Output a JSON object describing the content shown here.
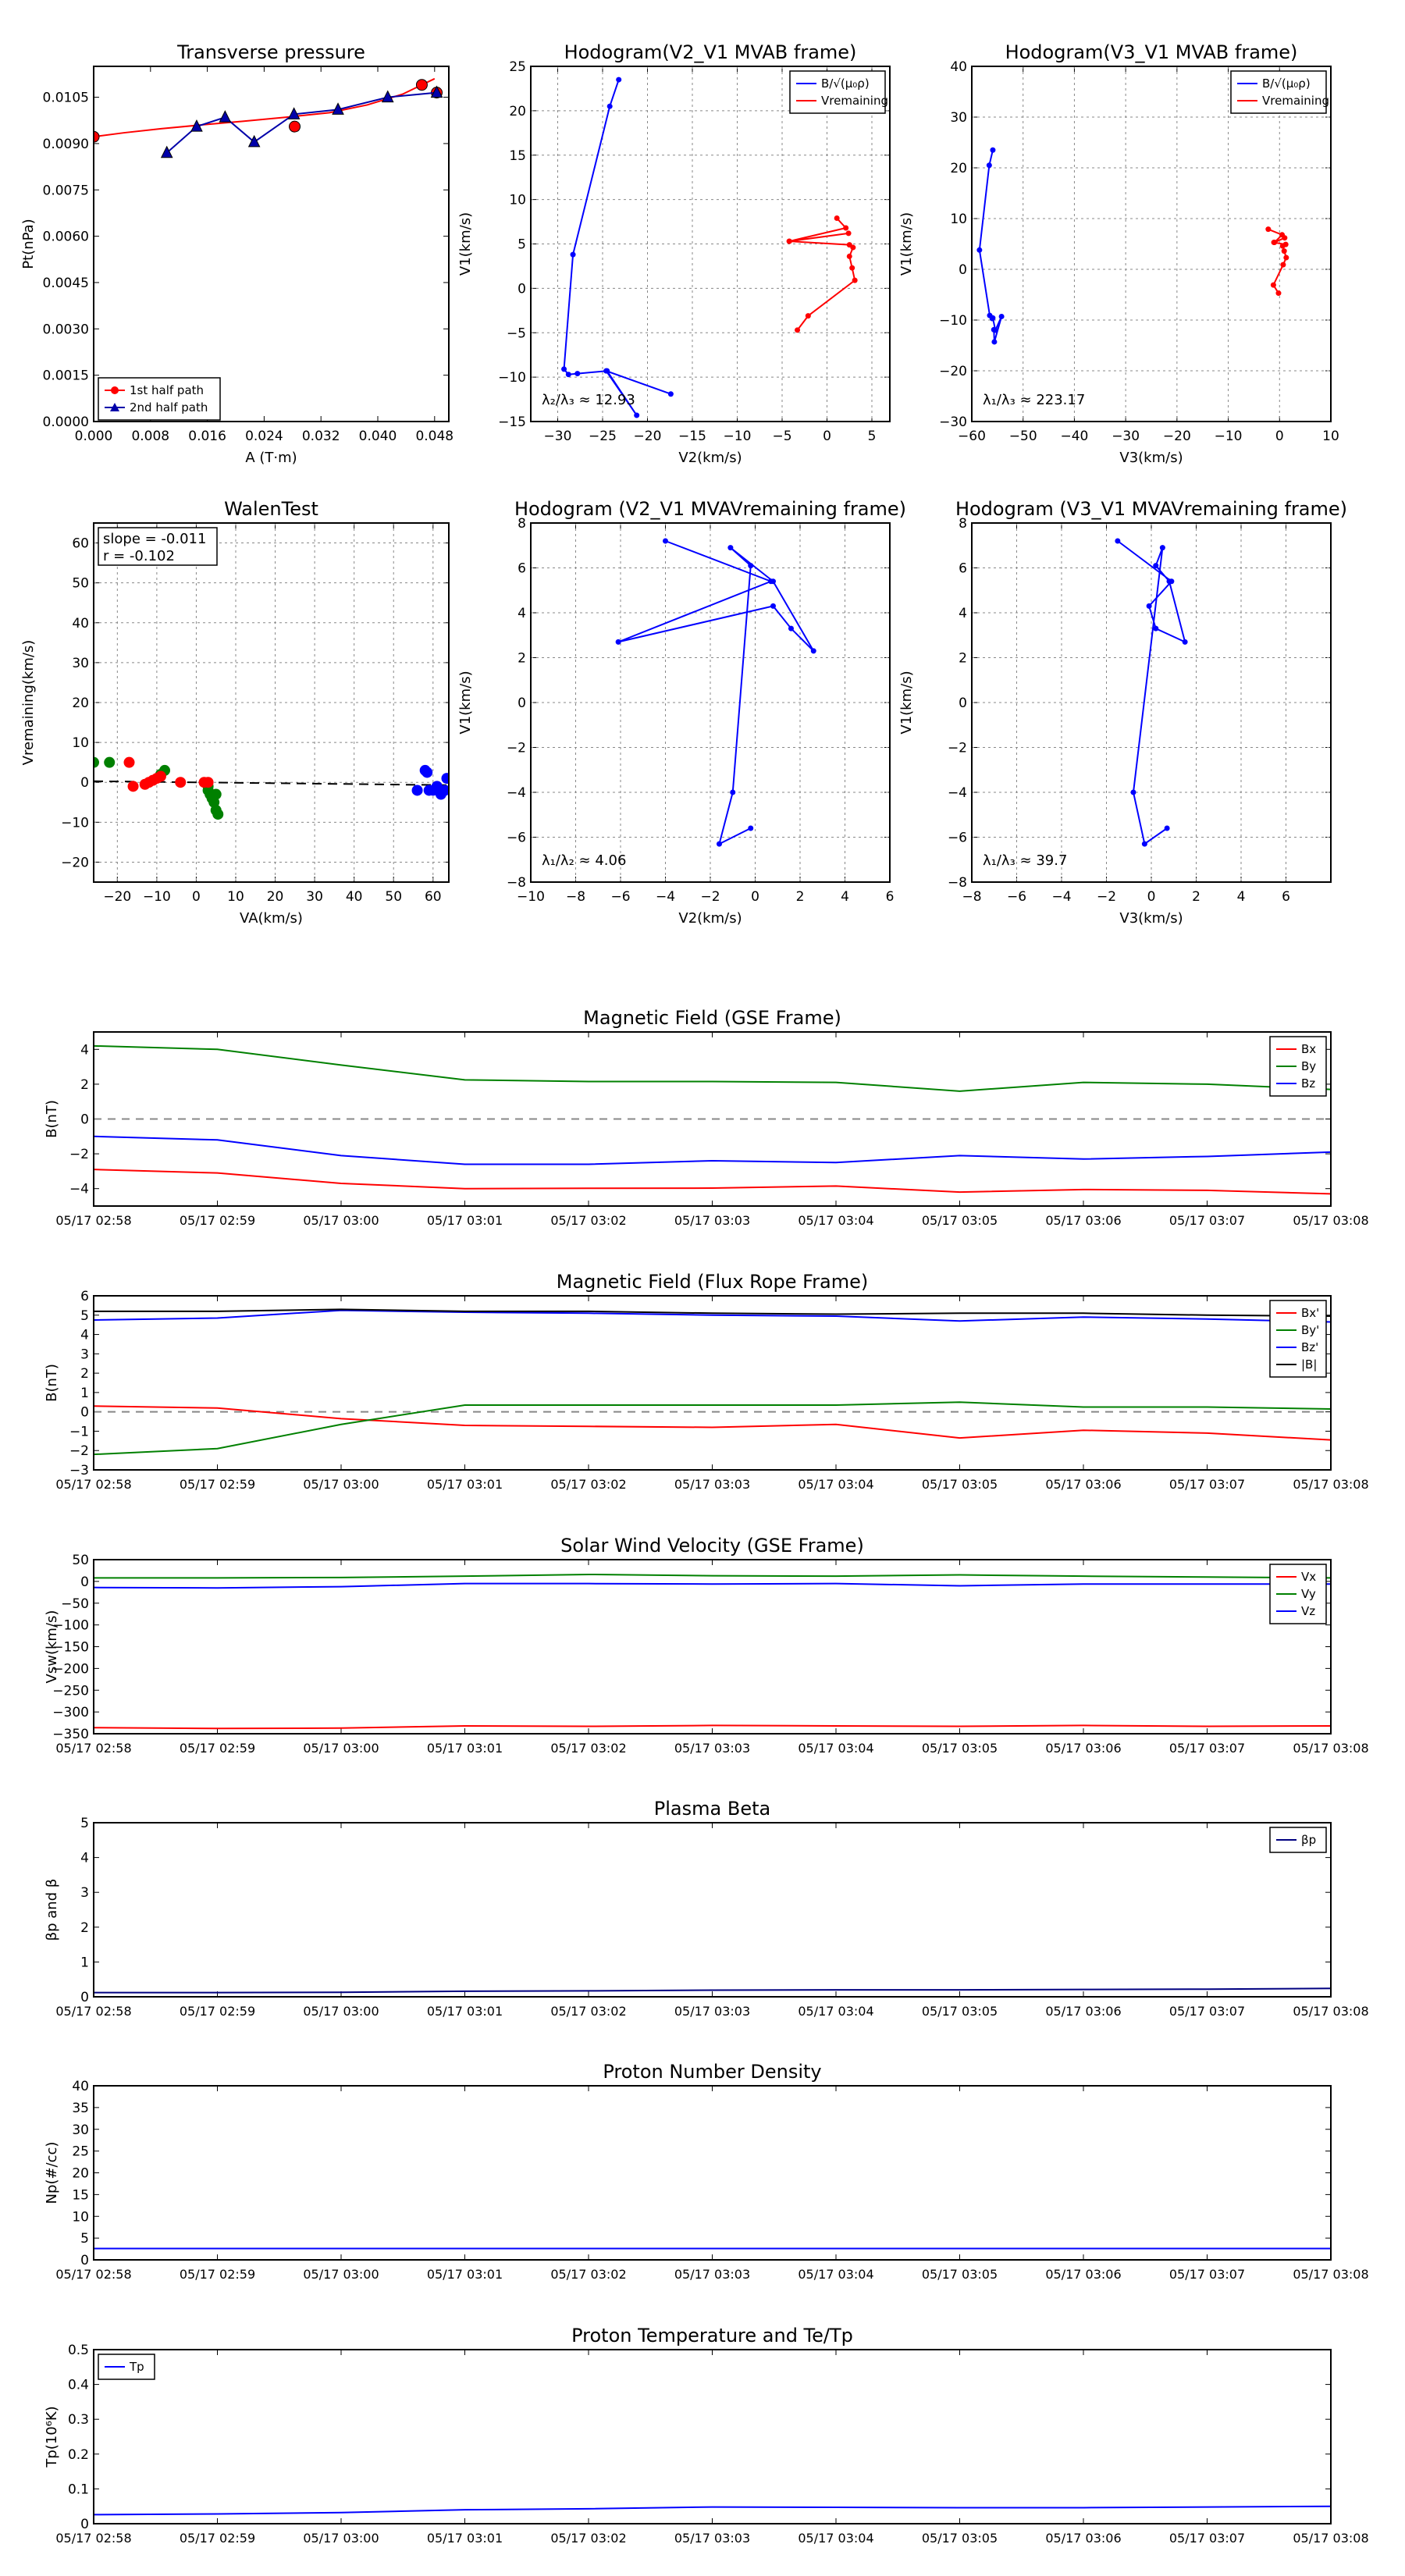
{
  "chart_data": [
    {
      "id": "tp",
      "type": "line",
      "title": "Transverse pressure",
      "xlabel": "A (T·m)",
      "ylabel": "Pt(nPa)",
      "xlim": [
        0,
        0.05
      ],
      "ylim": [
        0,
        0.0115
      ],
      "xticks": [
        0,
        0.008,
        0.016,
        0.024,
        0.032,
        0.04,
        0.048
      ],
      "xtick_labels": [
        "0.000",
        "0.008",
        "0.016",
        "0.024",
        "0.032",
        "0.040",
        "0.048"
      ],
      "yticks": [
        0,
        0.0015,
        0.003,
        0.0045,
        0.006,
        0.0075,
        0.009,
        0.0105
      ],
      "ytick_labels": [
        "0.0000",
        "0.0015",
        "0.0030",
        "0.0045",
        "0.0060",
        "0.0075",
        "0.0090",
        "0.0105"
      ],
      "legend": [
        "1st half path",
        "2nd half path"
      ],
      "fit": {
        "x": [
          0,
          0.0043,
          0.0095,
          0.015,
          0.021,
          0.027,
          0.0332,
          0.0385,
          0.0435,
          0.048
        ],
        "y": [
          0.00922,
          0.00935,
          0.00948,
          0.0096,
          0.00972,
          0.00985,
          0.01,
          0.01025,
          0.0106,
          0.0111
        ]
      },
      "series": [
        {
          "name": "1st half path",
          "color": "#ff0000",
          "marker": "circle",
          "x": [
            0,
            0.0283,
            0.0462,
            0.0483
          ],
          "y": [
            0.00922,
            0.00955,
            0.0109,
            0.01065
          ]
        },
        {
          "name": "2nd half path",
          "color": "#0000aa",
          "marker": "triangle",
          "x": [
            0.0103,
            0.0145,
            0.0185,
            0.0226,
            0.0282,
            0.0344,
            0.0414,
            0.0483
          ],
          "y": [
            0.0087,
            0.00955,
            0.00985,
            0.00905,
            0.00995,
            0.0101,
            0.0105,
            0.01065
          ]
        }
      ]
    },
    {
      "id": "h1",
      "type": "line",
      "title": "Hodogram(V2_V1 MVAB frame)",
      "xlabel": "V2(km/s)",
      "ylabel": "V1(km/s)",
      "xlim": [
        -33,
        7
      ],
      "ylim": [
        -15,
        25
      ],
      "xticks": [
        -30,
        -25,
        -20,
        -15,
        -10,
        -5,
        0,
        5
      ],
      "yticks": [
        -15,
        -10,
        -5,
        0,
        5,
        10,
        15,
        20,
        25
      ],
      "annotation": "λ₂/λ₃ ≈ 12.93",
      "legend": [
        "B/√(μ₀ρ)",
        "Vremaining"
      ],
      "series": [
        {
          "name": "B/√(μ₀ρ)",
          "color": "#0000ff",
          "x": [
            -23.2,
            -24.2,
            -28.3,
            -29.3,
            -28.8,
            -27.8,
            -24.5,
            -21.2,
            -24.6,
            -17.4
          ],
          "y": [
            23.5,
            20.5,
            3.8,
            -9.1,
            -9.7,
            -9.6,
            -9.3,
            -14.3,
            -9.3,
            -11.9
          ]
        },
        {
          "name": "Vremaining",
          "color": "#ff0000",
          "x": [
            1.1,
            2.1,
            -4.2,
            2.4,
            -4.2,
            2.5,
            2.9,
            2.5,
            2.8,
            3.1,
            -2.1,
            -3.3
          ],
          "y": [
            7.9,
            6.8,
            5.3,
            6.2,
            5.3,
            4.9,
            4.6,
            3.6,
            2.3,
            0.9,
            -3.1,
            -4.7
          ]
        }
      ]
    },
    {
      "id": "h2",
      "type": "line",
      "title": "Hodogram(V3_V1 MVAB frame)",
      "xlabel": "V3(km/s)",
      "ylabel": "V1(km/s)",
      "xlim": [
        -60,
        10
      ],
      "ylim": [
        -30,
        40
      ],
      "xticks": [
        -60,
        -50,
        -40,
        -30,
        -20,
        -10,
        0,
        10
      ],
      "yticks": [
        -30,
        -20,
        -10,
        0,
        10,
        20,
        30,
        40
      ],
      "annotation": "λ₁/λ₃ ≈ 223.17",
      "legend": [
        "B/√(μ₀ρ)",
        "Vremaining"
      ],
      "series": [
        {
          "name": "B/√(μ₀ρ)",
          "color": "#0000ff",
          "x": [
            -55.9,
            -56.6,
            -58.5,
            -56.5,
            -56,
            -55.9,
            -55.4,
            -54.2,
            -55.6,
            -55.7
          ],
          "y": [
            23.5,
            20.5,
            3.8,
            -9.1,
            -9.7,
            -9.6,
            -12,
            -9.3,
            -14.3,
            -11.9
          ]
        },
        {
          "name": "Vremaining",
          "color": "#ff0000",
          "x": [
            -2.2,
            0.5,
            -1,
            1,
            -1.1,
            1.2,
            0.6,
            0.9,
            1.3,
            0.7,
            -1.2,
            -0.2
          ],
          "y": [
            7.9,
            6.8,
            5.3,
            6.2,
            5.3,
            4.9,
            4.6,
            3.6,
            2.3,
            0.9,
            -3.1,
            -4.7
          ]
        }
      ]
    },
    {
      "id": "walen",
      "type": "scatter",
      "title": "WalenTest",
      "xlabel": "VA(km/s)",
      "ylabel": "Vremaining(km/s)",
      "xlim": [
        -26,
        64
      ],
      "ylim": [
        -25,
        65
      ],
      "xticks": [
        -20,
        -10,
        0,
        10,
        20,
        30,
        40,
        50,
        60
      ],
      "yticks": [
        -20,
        -10,
        0,
        10,
        20,
        30,
        40,
        50,
        60
      ],
      "annotation": [
        "slope = -0.011",
        "r = -0.102"
      ],
      "fit": {
        "x": [
          -26,
          64
        ],
        "y": [
          0.29,
          -0.7
        ]
      },
      "series": [
        {
          "name": "green",
          "color": "#008000",
          "x": [
            -26,
            -22,
            -8,
            -9,
            3,
            3.5,
            4,
            4.5,
            5,
            5.5,
            5,
            3
          ],
          "y": [
            5,
            5,
            3,
            2,
            -1,
            -3,
            -4,
            -5,
            -7,
            -8,
            -3,
            -2
          ]
        },
        {
          "name": "red",
          "color": "#ff0000",
          "x": [
            -17,
            -16,
            -13,
            -12,
            -11,
            -10,
            -9,
            -4,
            2,
            3
          ],
          "y": [
            5,
            -1,
            -0.5,
            0,
            0.5,
            1,
            1.5,
            0,
            0,
            0
          ]
        },
        {
          "name": "blue",
          "color": "#0000ff",
          "x": [
            56,
            58,
            58.5,
            59,
            60,
            61,
            62,
            63,
            63.5
          ],
          "y": [
            -2,
            3,
            2.5,
            -2,
            -2,
            -1,
            -3,
            -2,
            1
          ]
        }
      ]
    },
    {
      "id": "h3",
      "type": "line",
      "title": "Hodogram (V2_V1 MVAVremaining frame)",
      "xlabel": "V2(km/s)",
      "ylabel": "V1(km/s)",
      "xlim": [
        -10,
        6
      ],
      "ylim": [
        -8,
        8
      ],
      "xticks": [
        -10,
        -8,
        -6,
        -4,
        -2,
        0,
        2,
        4,
        6
      ],
      "yticks": [
        -8,
        -6,
        -4,
        -2,
        0,
        2,
        4,
        6,
        8
      ],
      "annotation": "λ₁/λ₂ ≈ 4.06",
      "series": [
        {
          "name": "B",
          "color": "#0000ff",
          "x": [
            -4,
            0.7,
            -6.1,
            0.8,
            1.6,
            2.6,
            0.8,
            -1.1,
            -0.2,
            -1,
            -1.6,
            -0.2
          ],
          "y": [
            7.2,
            5.4,
            2.7,
            4.3,
            3.3,
            2.3,
            5.4,
            6.9,
            6.1,
            -4,
            -6.3,
            -5.6
          ]
        }
      ]
    },
    {
      "id": "h4",
      "type": "line",
      "title": "Hodogram (V3_V1 MVAVremaining frame)",
      "xlabel": "V3(km/s)",
      "ylabel": "V1(km/s)",
      "xlim": [
        -8,
        8
      ],
      "ylim": [
        -8,
        8
      ],
      "xticks": [
        -8,
        -6,
        -4,
        -2,
        0,
        2,
        4,
        6
      ],
      "yticks": [
        -8,
        -6,
        -4,
        -2,
        0,
        2,
        4,
        6,
        8
      ],
      "annotation": "λ₁/λ₃ ≈ 39.7",
      "series": [
        {
          "name": "B",
          "color": "#0000ff",
          "x": [
            -1.5,
            0.9,
            -0.1,
            0.2,
            1.5,
            0.8,
            0.2,
            0.5,
            -0.8,
            -0.3,
            0.7
          ],
          "y": [
            7.2,
            5.4,
            4.3,
            3.3,
            2.7,
            5.4,
            6.1,
            6.9,
            -4,
            -6.3,
            -5.6
          ]
        }
      ]
    },
    {
      "id": "mfgse",
      "type": "line",
      "title": "Magnetic Field (GSE Frame)",
      "ylabel": "B(nT)",
      "ylim": [
        -5,
        5
      ],
      "yticks": [
        -4,
        -2,
        0,
        2,
        4
      ],
      "zero_line": true,
      "legend": [
        "Bx",
        "By",
        "Bz"
      ],
      "series": [
        {
          "name": "Bx",
          "color": "#ff0000",
          "y": [
            -2.9,
            -3.1,
            -3.7,
            -4,
            -3.98,
            -3.97,
            -3.85,
            -4.2,
            -4.05,
            -4.1,
            -4.3
          ]
        },
        {
          "name": "By",
          "color": "#008000",
          "y": [
            4.2,
            4,
            3.1,
            2.25,
            2.15,
            2.15,
            2.1,
            1.6,
            2.1,
            2,
            1.7
          ]
        },
        {
          "name": "Bz",
          "color": "#0000ff",
          "y": [
            -1,
            -1.2,
            -2.1,
            -2.6,
            -2.6,
            -2.4,
            -2.5,
            -2.1,
            -2.3,
            -2.15,
            -1.9
          ]
        }
      ]
    },
    {
      "id": "mffr",
      "type": "line",
      "title": "Magnetic Field (Flux Rope Frame)",
      "ylabel": "B(nT)",
      "ylim": [
        -3,
        6
      ],
      "yticks": [
        -3,
        -2,
        -1,
        0,
        1,
        2,
        3,
        4,
        5,
        6
      ],
      "zero_line": true,
      "legend": [
        "Bx'",
        "By'",
        "Bz'",
        "|B|"
      ],
      "series": [
        {
          "name": "Bx'",
          "color": "#ff0000",
          "y": [
            0.3,
            0.2,
            -0.35,
            -0.7,
            -0.75,
            -0.8,
            -0.65,
            -1.35,
            -0.95,
            -1.1,
            -1.45
          ]
        },
        {
          "name": "By'",
          "color": "#008000",
          "y": [
            -2.2,
            -1.9,
            -0.65,
            0.35,
            0.35,
            0.35,
            0.35,
            0.5,
            0.25,
            0.25,
            0.15
          ]
        },
        {
          "name": "Bz'",
          "color": "#0000ff",
          "y": [
            4.75,
            4.85,
            5.25,
            5.15,
            5.1,
            5,
            4.95,
            4.7,
            4.9,
            4.8,
            4.65
          ]
        },
        {
          "name": "|B|",
          "color": "#000000",
          "y": [
            5.2,
            5.2,
            5.3,
            5.2,
            5.2,
            5.1,
            5.05,
            5.1,
            5.1,
            5,
            4.95
          ]
        }
      ]
    },
    {
      "id": "swv",
      "type": "line",
      "title": "Solar Wind Velocity (GSE Frame)",
      "ylabel": "Vsw(km/s)",
      "ylim": [
        -350,
        50
      ],
      "yticks": [
        -350,
        -300,
        -250,
        -200,
        -150,
        -100,
        -50,
        0,
        50
      ],
      "legend": [
        "Vx",
        "Vy",
        "Vz"
      ],
      "series": [
        {
          "name": "Vx",
          "color": "#ff0000",
          "y": [
            -336,
            -338,
            -337,
            -332,
            -333,
            -331,
            -332,
            -333,
            -331,
            -333,
            -332
          ]
        },
        {
          "name": "Vy",
          "color": "#008000",
          "y": [
            8,
            8,
            9,
            12,
            16,
            13,
            12,
            15,
            12,
            10,
            8
          ]
        },
        {
          "name": "Vz",
          "color": "#0000ff",
          "y": [
            -14,
            -15,
            -12,
            -5,
            -5,
            -6,
            -5,
            -10,
            -6,
            -6,
            -6
          ]
        }
      ]
    },
    {
      "id": "beta",
      "type": "line",
      "title": "Plasma Beta",
      "ylabel": "βp and β",
      "ylim": [
        0,
        5
      ],
      "yticks": [
        0,
        1,
        2,
        3,
        4,
        5
      ],
      "legend": [
        "βp"
      ],
      "series": [
        {
          "name": "βp",
          "color": "#000080",
          "y": [
            0.12,
            0.12,
            0.13,
            0.16,
            0.17,
            0.19,
            0.2,
            0.2,
            0.21,
            0.22,
            0.24
          ]
        }
      ]
    },
    {
      "id": "npd",
      "type": "line",
      "title": "Proton Number Density",
      "ylabel": "Np(#/cc)",
      "ylim": [
        0,
        40
      ],
      "yticks": [
        0,
        5,
        10,
        15,
        20,
        25,
        30,
        35,
        40
      ],
      "series": [
        {
          "name": "Np",
          "color": "#0000ff",
          "y": [
            2.6,
            2.6,
            2.6,
            2.6,
            2.6,
            2.6,
            2.6,
            2.6,
            2.6,
            2.6,
            2.6
          ]
        }
      ]
    },
    {
      "id": "ptemp",
      "type": "line",
      "title": "Proton Temperature and Te/Tp",
      "ylabel": "Tp(10⁶K)",
      "ylim": [
        0,
        0.5
      ],
      "yticks": [
        0,
        0.1,
        0.2,
        0.3,
        0.4,
        0.5
      ],
      "legend": [
        "Tp"
      ],
      "series": [
        {
          "name": "Tp",
          "color": "#0000ff",
          "y": [
            0.026,
            0.028,
            0.032,
            0.04,
            0.043,
            0.048,
            0.047,
            0.046,
            0.046,
            0.048,
            0.05
          ]
        }
      ]
    }
  ],
  "time_labels": [
    "05/17 02:58",
    "05/17 02:59",
    "05/17 03:00",
    "05/17 03:01",
    "05/17 03:02",
    "05/17 03:03",
    "05/17 03:04",
    "05/17 03:05",
    "05/17 03:06",
    "05/17 03:07",
    "05/17 03:08"
  ]
}
